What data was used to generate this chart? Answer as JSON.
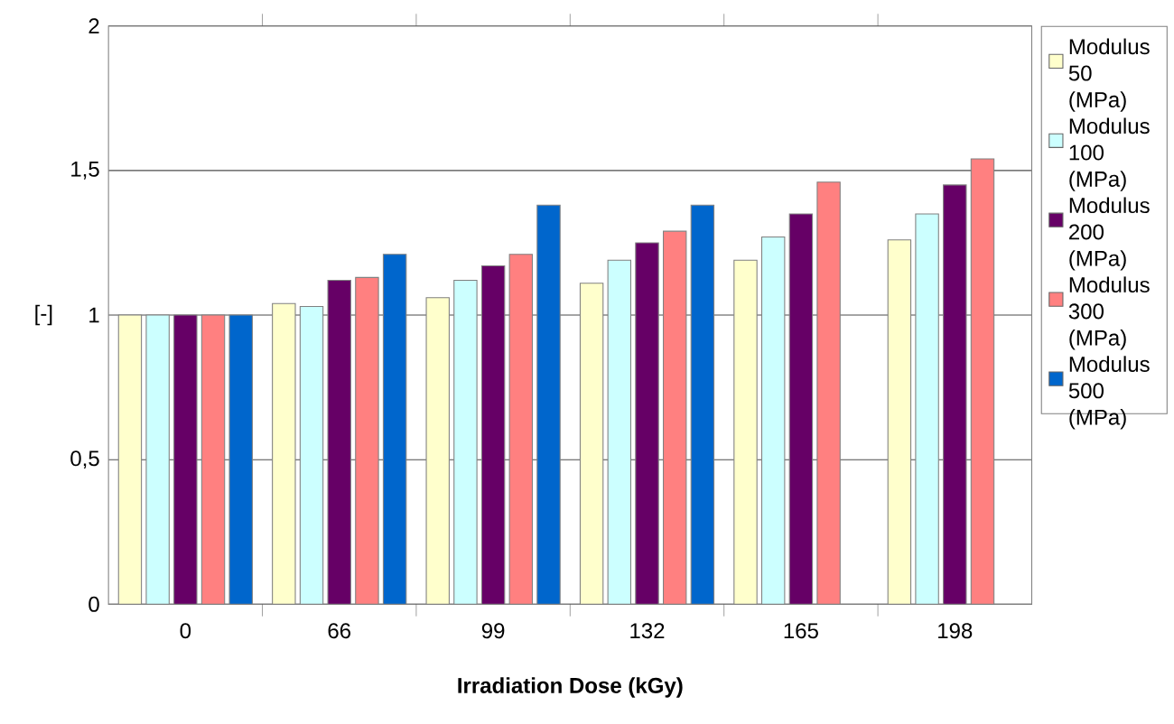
{
  "chart_data": {
    "type": "bar",
    "xlabel": "Irradiation Dose (kGy)",
    "ylabel": "[-]",
    "categories": [
      "0",
      "66",
      "99",
      "132",
      "165",
      "198"
    ],
    "series": [
      {
        "name": "Modulus 50 (MPa)",
        "color": "#ffffcc",
        "values": [
          1,
          1.04,
          1.06,
          1.11,
          1.19,
          1.26
        ]
      },
      {
        "name": "Modulus 100 (MPa)",
        "color": "#ccffff",
        "values": [
          1,
          1.03,
          1.12,
          1.19,
          1.27,
          1.35
        ]
      },
      {
        "name": "Modulus 200 (MPa)",
        "color": "#660066",
        "values": [
          1,
          1.12,
          1.17,
          1.25,
          1.35,
          1.45
        ]
      },
      {
        "name": "Modulus 300 (MPa)",
        "color": "#ff8080",
        "values": [
          1,
          1.13,
          1.21,
          1.29,
          1.46,
          1.54
        ]
      },
      {
        "name": "Modulus 500 (MPa)",
        "color": "#0066cc",
        "values": [
          1,
          1.21,
          1.38,
          1.38,
          null,
          null
        ]
      }
    ],
    "ylim": [
      0,
      2
    ],
    "yticks": [
      0,
      {
        "value": 0.5,
        "label": "0,5"
      },
      1,
      {
        "value": 1.5,
        "label": "1,5"
      },
      2
    ],
    "grid": "y",
    "legend": "right"
  }
}
